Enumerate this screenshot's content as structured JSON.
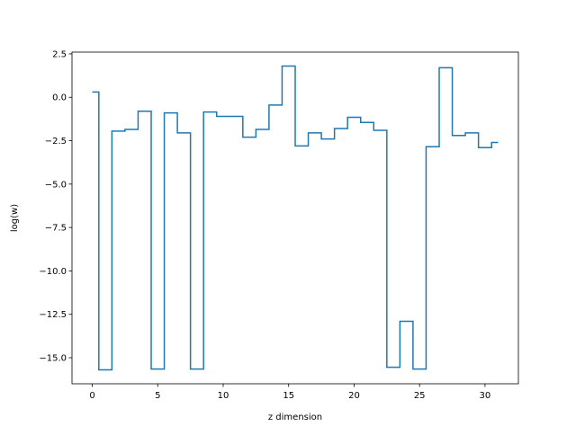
{
  "chart_data": {
    "type": "line",
    "drawstyle": "steps-mid",
    "xlabel": "z dimension",
    "ylabel": "log(w)",
    "xlim": [
      -1.55,
      32.55
    ],
    "ylim": [
      -16.5,
      2.6
    ],
    "xticks": [
      0,
      5,
      10,
      15,
      20,
      25,
      30
    ],
    "xtick_labels": [
      "0",
      "5",
      "10",
      "15",
      "20",
      "25",
      "30"
    ],
    "yticks": [
      2.5,
      0.0,
      -2.5,
      -5.0,
      -7.5,
      -10.0,
      -12.5,
      -15.0
    ],
    "ytick_labels": [
      "2.5",
      "0.0",
      "−2.5",
      "−5.0",
      "−7.5",
      "−10.0",
      "−12.5",
      "−15.0"
    ],
    "grid": false,
    "legend": false,
    "color": "#1f77b4",
    "series": [
      {
        "x": [
          0,
          1,
          2,
          3,
          4,
          5,
          6,
          7,
          8,
          9,
          10,
          11,
          12,
          13,
          14,
          15,
          16,
          17,
          18,
          19,
          20,
          21,
          22,
          23,
          24,
          25,
          26,
          27,
          28,
          29,
          30,
          31
        ],
        "values": [
          0.3,
          -15.7,
          -1.95,
          -1.85,
          -0.8,
          -15.65,
          -0.9,
          -2.05,
          -15.65,
          -0.85,
          -1.1,
          -1.1,
          -2.3,
          -1.85,
          -0.45,
          1.8,
          -2.8,
          -2.05,
          -2.4,
          -1.8,
          -1.15,
          -1.45,
          -1.9,
          -15.55,
          -12.9,
          -15.65,
          -2.85,
          1.7,
          -2.2,
          -2.05,
          -2.9,
          -2.6
        ]
      }
    ]
  }
}
